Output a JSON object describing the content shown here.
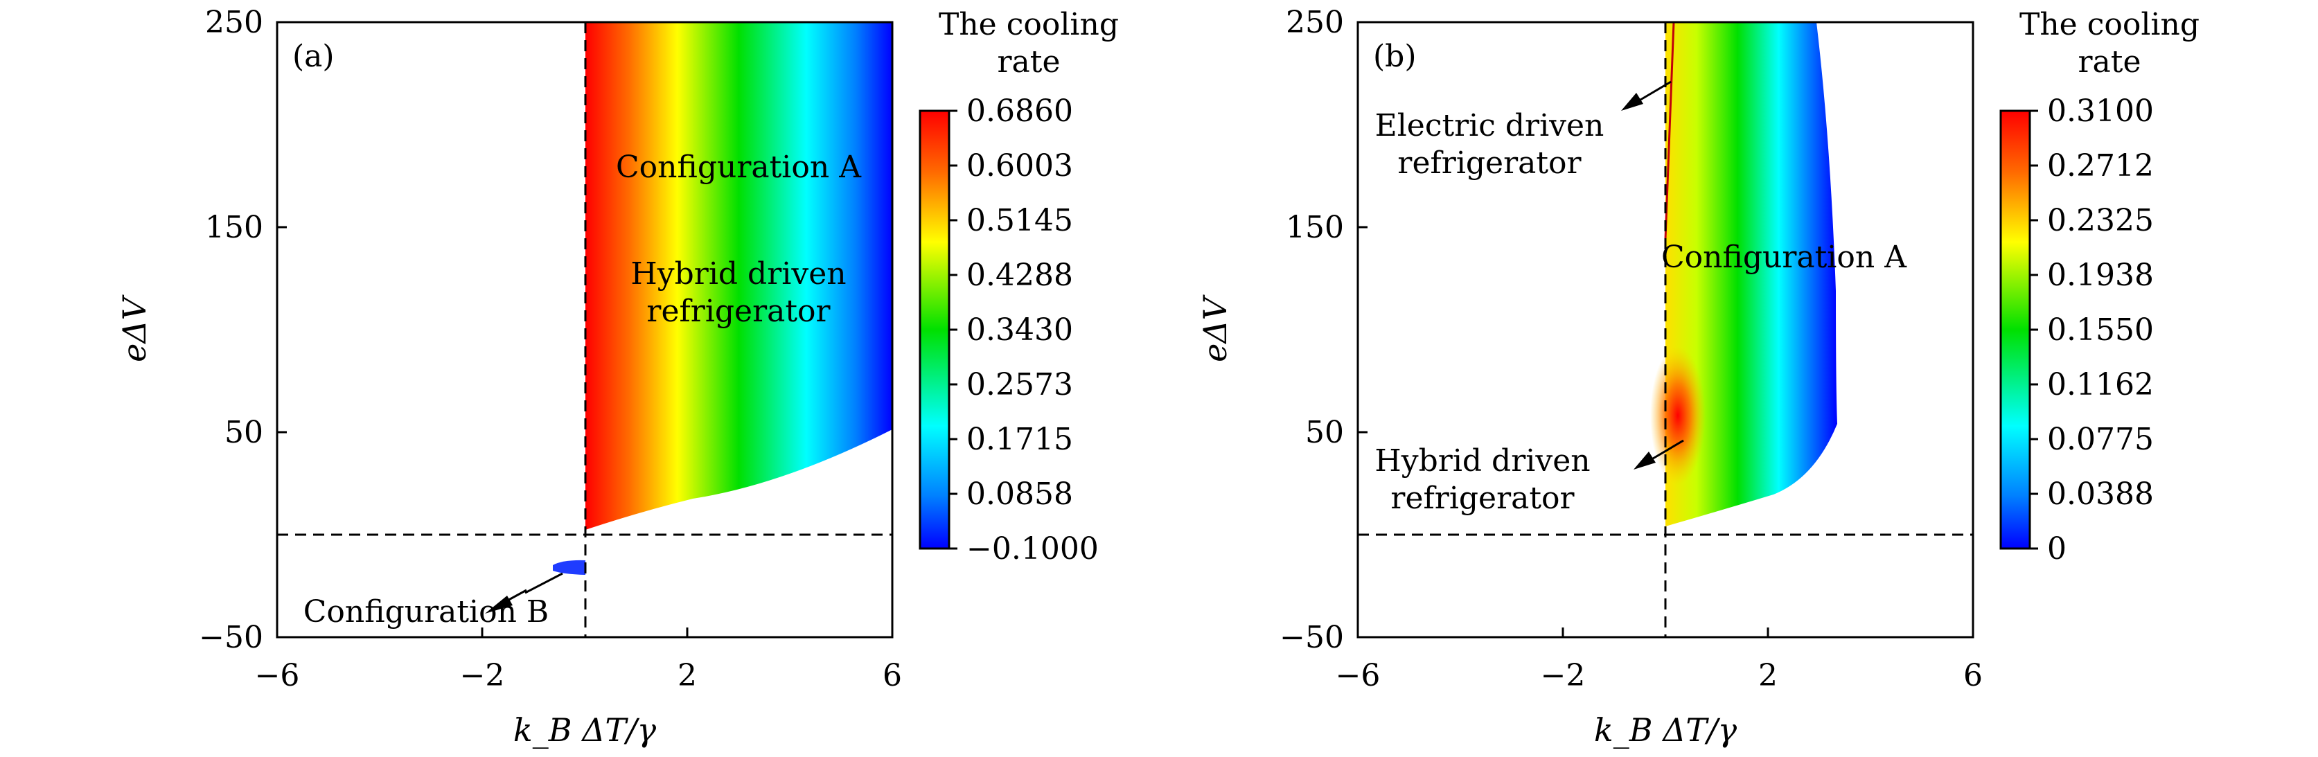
{
  "chart_data": [
    {
      "type": "heatmap",
      "panel_label": "(a)",
      "xlabel": "k_B ΔT/γ",
      "ylabel": "eΔV",
      "xlim": [
        -6,
        6
      ],
      "ylim": [
        -50,
        250
      ],
      "xticks": [
        "−6",
        "−2",
        "2",
        "6"
      ],
      "yticks": [
        "−50",
        "50",
        "150",
        "250"
      ],
      "colorbar": {
        "title_line1": "The cooling",
        "title_line2": "rate",
        "ticks": [
          "0.6860",
          "0.6003",
          "0.5145",
          "0.4288",
          "0.3430",
          "0.2573",
          "0.1715",
          "0.0858",
          "−0.1000"
        ],
        "range": [
          -0.1,
          0.686
        ]
      },
      "annotations": {
        "config_a": "Configuration A",
        "hybrid_line1": "Hybrid driven",
        "hybrid_line2": "refrigerator",
        "config_b": "Configuration B"
      },
      "regions": [
        {
          "name": "Configuration A",
          "x_range": [
            0,
            6
          ],
          "value_at_x0": 0.686,
          "value_at_x6": -0.1
        },
        {
          "name": "Configuration B",
          "x_range": [
            -0.8,
            0
          ],
          "y": -15,
          "value": -0.1
        }
      ],
      "reference_lines": {
        "x": 0,
        "y": 0,
        "style": "dashed"
      }
    },
    {
      "type": "heatmap",
      "panel_label": "(b)",
      "xlabel": "k_B ΔT/γ",
      "ylabel": "eΔV",
      "xlim": [
        -6,
        6
      ],
      "ylim": [
        -50,
        250
      ],
      "xticks": [
        "−6",
        "−2",
        "2",
        "6"
      ],
      "yticks": [
        "−50",
        "50",
        "150",
        "250"
      ],
      "colorbar": {
        "title_line1": "The cooling",
        "title_line2": "rate",
        "ticks": [
          "0.3100",
          "0.2712",
          "0.2325",
          "0.1938",
          "0.1550",
          "0.1162",
          "0.0775",
          "0.0388",
          "0"
        ],
        "range": [
          0,
          0.31
        ]
      },
      "annotations": {
        "electric_line1": "Electric driven",
        "electric_line2": "refrigerator",
        "config_a": "Configuration A",
        "hybrid_line1": "Hybrid driven",
        "hybrid_line2": "refrigerator"
      },
      "regions": [
        {
          "name": "Configuration A",
          "x_range": [
            0,
            3.4
          ],
          "max_value": 0.31,
          "max_at": [
            0.5,
            50
          ]
        }
      ],
      "reference_lines": {
        "x": 0,
        "y": 0,
        "style": "dashed"
      }
    }
  ]
}
